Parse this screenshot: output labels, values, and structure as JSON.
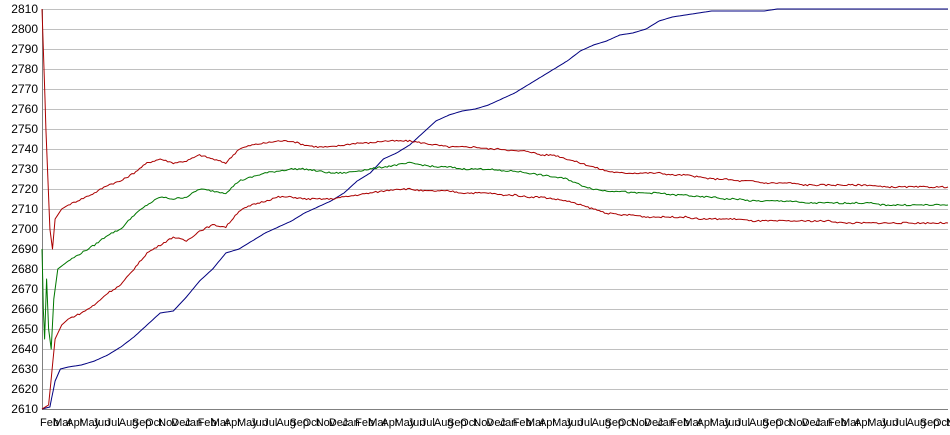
{
  "chart_data": {
    "type": "line",
    "title": "",
    "xlabel": "",
    "ylabel": "",
    "ylim": [
      2610,
      2810
    ],
    "grid": true,
    "legend": "none",
    "yticks": [
      2610,
      2620,
      2630,
      2640,
      2650,
      2660,
      2670,
      2680,
      2690,
      2700,
      2710,
      2720,
      2730,
      2740,
      2750,
      2760,
      2770,
      2780,
      2790,
      2800,
      2810
    ],
    "x_tick_labels": [
      "Feb",
      "Mar",
      "Apr",
      "May",
      "Jun",
      "Jul",
      "Aug",
      "Sep",
      "Oct",
      "Nov",
      "Dec",
      "Jan",
      "Feb",
      "Mar",
      "Apr",
      "May",
      "Jun",
      "Jul",
      "Aug",
      "Sep",
      "Oct",
      "Nov",
      "Dec",
      "Jan",
      "Feb",
      "Mar",
      "Apr",
      "May",
      "Jun",
      "Jul",
      "Aug",
      "Sep",
      "Oct",
      "Nov",
      "Dec",
      "Jan",
      "Feb",
      "Mar",
      "Apr",
      "May",
      "Jun",
      "Jul",
      "Aug",
      "Sep",
      "Oct",
      "Nov",
      "Dec",
      "Jan",
      "Feb",
      "Mar",
      "Apr",
      "May",
      "Jun",
      "Jul",
      "Aug",
      "Sep",
      "Oct",
      "Nov",
      "Dec",
      "Jan",
      "Feb",
      "Mar",
      "Apr",
      "May",
      "Jun",
      "Jul",
      "Aug",
      "Sep",
      "Oct",
      "Nov"
    ],
    "x_range": [
      0,
      69
    ],
    "series": [
      {
        "color": "#000080",
        "x": [
          0,
          0.6,
          1.0,
          1.4,
          2,
          3,
          4,
          5,
          6,
          7,
          8,
          9,
          10,
          11,
          12,
          13,
          14,
          15,
          16,
          17,
          18,
          19,
          20,
          21,
          22,
          23,
          24,
          25,
          26,
          27,
          28,
          29,
          30,
          31,
          32,
          33,
          34,
          35,
          36,
          37,
          38,
          39,
          40,
          41,
          42,
          43,
          44,
          45,
          46,
          47,
          48,
          49,
          50,
          51,
          52,
          53,
          54,
          55,
          56,
          57,
          58,
          59,
          60,
          61,
          62,
          63,
          64,
          65,
          66,
          67,
          68,
          69
        ],
        "y": [
          2610,
          2611,
          2624,
          2630,
          2631,
          2632,
          2634,
          2637,
          2641,
          2646,
          2652,
          2658,
          2659,
          2666,
          2674,
          2680,
          2688,
          2690,
          2694,
          2698,
          2701,
          2704,
          2708,
          2711,
          2714,
          2718,
          2724,
          2728,
          2735,
          2738,
          2742,
          2748,
          2754,
          2757,
          2759,
          2760,
          2762,
          2765,
          2768,
          2772,
          2776,
          2780,
          2784,
          2789,
          2792,
          2794,
          2797,
          2798,
          2800,
          2804,
          2806,
          2807,
          2808,
          2809,
          2809,
          2809,
          2809,
          2809,
          2810,
          2810,
          2810,
          2810,
          2810,
          2810,
          2810,
          2810,
          2810,
          2810,
          2810,
          2810,
          2810,
          2810
        ]
      },
      {
        "color": "#aa0000",
        "x": [
          0,
          0.15,
          0.3,
          0.45,
          0.6,
          0.8,
          1.0,
          1.5,
          2,
          3,
          4,
          5,
          6,
          7,
          8,
          9,
          10,
          11,
          12,
          13,
          14,
          15,
          16,
          17,
          18,
          19,
          20,
          21,
          22,
          23,
          24,
          25,
          26,
          27,
          28,
          29,
          30,
          31,
          32,
          33,
          34,
          35,
          36,
          37,
          38,
          39,
          40,
          41,
          42,
          43,
          44,
          45,
          46,
          47,
          48,
          49,
          50,
          51,
          52,
          53,
          54,
          55,
          56,
          57,
          58,
          59,
          60,
          61,
          62,
          63,
          64,
          65,
          66,
          67,
          68,
          69
        ],
        "y": [
          2810,
          2780,
          2750,
          2725,
          2700,
          2690,
          2705,
          2710,
          2712,
          2715,
          2718,
          2722,
          2724,
          2728,
          2733,
          2735,
          2733,
          2734,
          2737,
          2735,
          2733,
          2740,
          2742,
          2743,
          2744,
          2744,
          2742,
          2741,
          2741,
          2742,
          2743,
          2743,
          2744,
          2744,
          2744,
          2743,
          2742,
          2741,
          2741,
          2741,
          2740,
          2740,
          2739,
          2739,
          2737,
          2737,
          2735,
          2733,
          2731,
          2729,
          2728,
          2728,
          2728,
          2728,
          2727,
          2727,
          2726,
          2725,
          2725,
          2724,
          2724,
          2723,
          2723,
          2723,
          2722,
          2722,
          2722,
          2722,
          2722,
          2722,
          2721,
          2721,
          2721,
          2721,
          2721,
          2721
        ]
      },
      {
        "color": "#007700",
        "x": [
          0,
          0.1,
          0.2,
          0.35,
          0.5,
          0.7,
          0.9,
          1.2,
          1.6,
          2,
          3,
          4,
          5,
          6,
          7,
          8,
          9,
          10,
          11,
          12,
          13,
          14,
          15,
          16,
          17,
          18,
          19,
          20,
          21,
          22,
          23,
          24,
          25,
          26,
          27,
          28,
          29,
          30,
          31,
          32,
          33,
          34,
          35,
          36,
          37,
          38,
          39,
          40,
          41,
          42,
          43,
          44,
          45,
          46,
          47,
          48,
          49,
          50,
          51,
          52,
          53,
          54,
          55,
          56,
          57,
          58,
          59,
          60,
          61,
          62,
          63,
          64,
          65,
          66,
          67,
          68,
          69
        ],
        "y": [
          2690,
          2660,
          2645,
          2675,
          2650,
          2640,
          2665,
          2680,
          2682,
          2684,
          2688,
          2692,
          2697,
          2700,
          2707,
          2712,
          2716,
          2715,
          2716,
          2720,
          2719,
          2718,
          2724,
          2726,
          2728,
          2729,
          2730,
          2730,
          2729,
          2728,
          2728,
          2729,
          2730,
          2731,
          2732,
          2733,
          2732,
          2731,
          2731,
          2730,
          2730,
          2730,
          2729,
          2729,
          2728,
          2727,
          2726,
          2725,
          2722,
          2720,
          2719,
          2719,
          2718,
          2718,
          2718,
          2717,
          2717,
          2716,
          2716,
          2715,
          2715,
          2714,
          2714,
          2714,
          2714,
          2713,
          2713,
          2713,
          2713,
          2713,
          2713,
          2712,
          2712,
          2712,
          2712,
          2712,
          2712
        ]
      },
      {
        "color": "#aa0000",
        "x": [
          0,
          0.5,
          1.0,
          1.5,
          2,
          3,
          4,
          5,
          6,
          7,
          8,
          9,
          10,
          11,
          12,
          13,
          14,
          15,
          16,
          17,
          18,
          19,
          20,
          21,
          22,
          23,
          24,
          25,
          26,
          27,
          28,
          29,
          30,
          31,
          32,
          33,
          34,
          35,
          36,
          37,
          38,
          39,
          40,
          41,
          42,
          43,
          44,
          45,
          46,
          47,
          48,
          49,
          50,
          51,
          52,
          53,
          54,
          55,
          56,
          57,
          58,
          59,
          60,
          61,
          62,
          63,
          64,
          65,
          66,
          67,
          68,
          69
        ],
        "y": [
          2610,
          2612,
          2645,
          2652,
          2655,
          2658,
          2662,
          2668,
          2672,
          2680,
          2688,
          2692,
          2696,
          2694,
          2699,
          2702,
          2701,
          2709,
          2712,
          2714,
          2716,
          2716,
          2715,
          2715,
          2715,
          2716,
          2717,
          2718,
          2719,
          2720,
          2720,
          2719,
          2719,
          2719,
          2718,
          2718,
          2718,
          2717,
          2717,
          2716,
          2716,
          2715,
          2714,
          2712,
          2710,
          2708,
          2707,
          2707,
          2706,
          2706,
          2706,
          2706,
          2705,
          2705,
          2705,
          2705,
          2704,
          2704,
          2704,
          2704,
          2704,
          2704,
          2704,
          2703,
          2703,
          2703,
          2703,
          2703,
          2703,
          2703,
          2703,
          2703
        ]
      }
    ]
  }
}
